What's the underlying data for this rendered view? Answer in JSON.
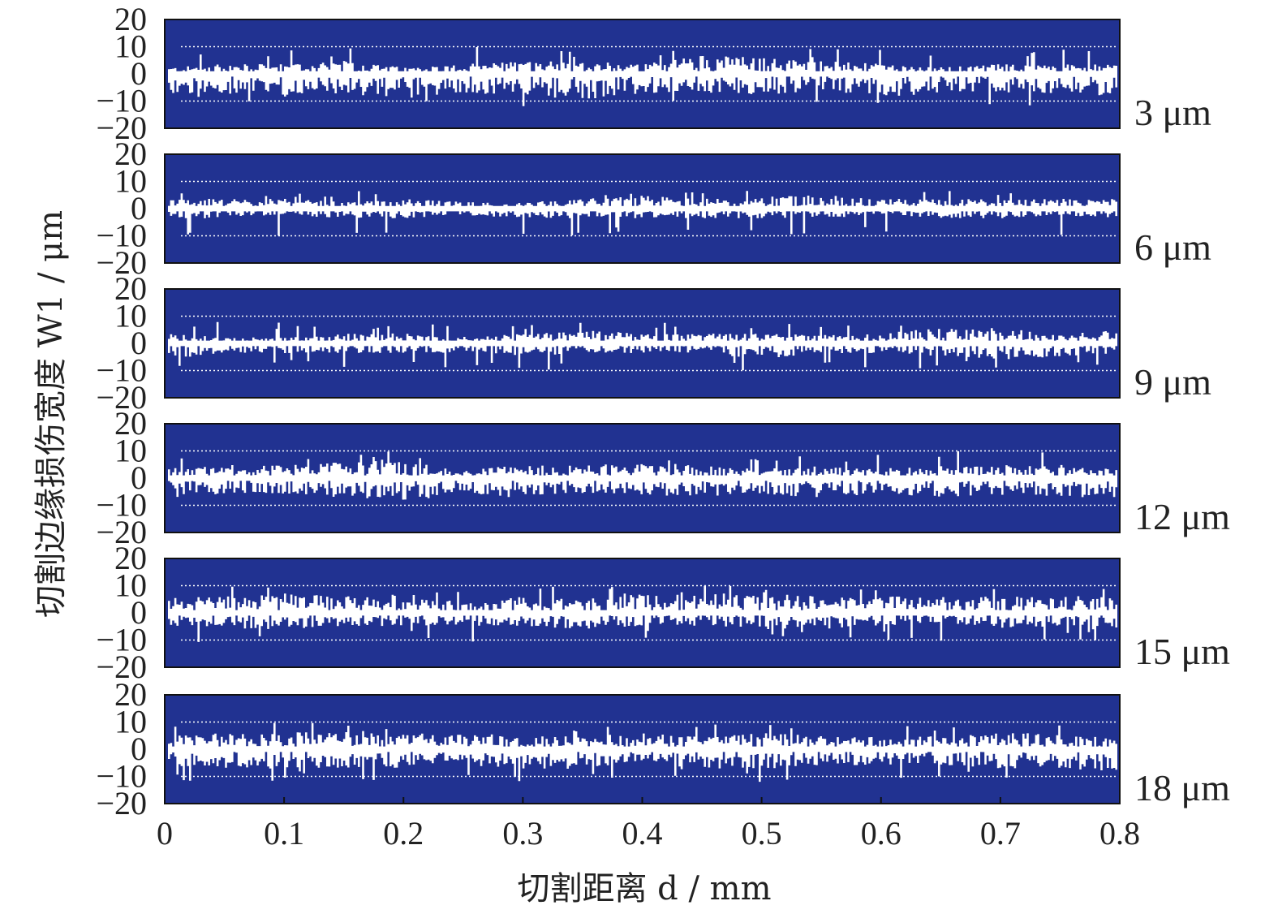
{
  "chart_data": {
    "type": "line",
    "xlabel": "切割距离 d / mm",
    "ylabel": "切割边缘损伤宽度 W1 / μm",
    "xlim": [
      0,
      0.8
    ],
    "ylim": [
      -20,
      20
    ],
    "x_ticks": [
      "0",
      "0.1",
      "0.2",
      "0.3",
      "0.4",
      "0.5",
      "0.6",
      "0.7",
      "0.8"
    ],
    "y_ticks": [
      "20",
      "10",
      "0",
      "−10",
      "−20"
    ],
    "grid_y": [
      10,
      -10
    ],
    "colors": {
      "background": "#213291",
      "trace": "#ffffff",
      "frame": "#111111"
    },
    "panels": [
      {
        "label": "3 μm",
        "x": [
          0,
          0.05,
          0.1,
          0.15,
          0.2,
          0.25,
          0.3,
          0.35,
          0.4,
          0.45,
          0.5,
          0.55,
          0.6,
          0.65,
          0.7,
          0.75,
          0.8
        ],
        "upper": [
          2,
          3,
          3,
          4,
          2,
          3,
          4,
          4,
          3,
          6,
          5,
          4,
          3,
          2,
          3,
          3,
          3
        ],
        "lower": [
          -7,
          -6,
          -7,
          -7,
          -8,
          -6,
          -7,
          -8,
          -6,
          -6,
          -7,
          -5,
          -7,
          -6,
          -6,
          -6,
          -7
        ],
        "max_peak": 10,
        "min_peak": -12
      },
      {
        "label": "6 μm",
        "x": [
          0,
          0.05,
          0.1,
          0.15,
          0.2,
          0.25,
          0.3,
          0.35,
          0.4,
          0.45,
          0.5,
          0.55,
          0.6,
          0.65,
          0.7,
          0.75,
          0.8
        ],
        "upper": [
          3,
          3,
          3,
          2,
          3,
          2,
          2,
          3,
          4,
          3,
          4,
          4,
          3,
          3,
          3,
          3,
          3
        ],
        "lower": [
          -3,
          -3,
          -2,
          -3,
          -3,
          -2,
          -3,
          -3,
          -3,
          -3,
          -3,
          -3,
          -2,
          -3,
          -3,
          -2,
          -3
        ],
        "max_peak": 7,
        "min_peak": -10
      },
      {
        "label": "9 μm",
        "x": [
          0,
          0.05,
          0.1,
          0.15,
          0.2,
          0.25,
          0.3,
          0.35,
          0.4,
          0.45,
          0.5,
          0.55,
          0.6,
          0.65,
          0.7,
          0.75,
          0.8
        ],
        "upper": [
          3,
          2,
          2,
          3,
          3,
          2,
          3,
          4,
          3,
          3,
          3,
          3,
          3,
          5,
          4,
          3,
          4
        ],
        "lower": [
          -5,
          -3,
          -3,
          -3,
          -3,
          -3,
          -4,
          -3,
          -3,
          -3,
          -5,
          -3,
          -3,
          -4,
          -5,
          -4,
          -3
        ],
        "max_peak": 8,
        "min_peak": -10
      },
      {
        "label": "12 μm",
        "x": [
          0,
          0.05,
          0.1,
          0.15,
          0.2,
          0.25,
          0.3,
          0.35,
          0.4,
          0.45,
          0.5,
          0.55,
          0.6,
          0.65,
          0.7,
          0.75,
          0.8
        ],
        "upper": [
          3,
          4,
          4,
          5,
          5,
          3,
          4,
          4,
          5,
          4,
          3,
          4,
          3,
          4,
          4,
          4,
          3
        ],
        "lower": [
          -5,
          -5,
          -5,
          -6,
          -7,
          -5,
          -5,
          -5,
          -5,
          -6,
          -5,
          -6,
          -5,
          -6,
          -5,
          -6,
          -6
        ],
        "max_peak": 10,
        "min_peak": -7
      },
      {
        "label": "15 μm",
        "x": [
          0,
          0.05,
          0.1,
          0.15,
          0.2,
          0.25,
          0.3,
          0.35,
          0.4,
          0.45,
          0.5,
          0.55,
          0.6,
          0.65,
          0.7,
          0.75,
          0.8
        ],
        "upper": [
          5,
          5,
          6,
          5,
          6,
          3,
          5,
          4,
          7,
          6,
          6,
          5,
          5,
          5,
          5,
          5,
          5
        ],
        "lower": [
          -4,
          -5,
          -5,
          -4,
          -4,
          -4,
          -4,
          -5,
          -4,
          -4,
          -5,
          -5,
          -4,
          -3,
          -5,
          -4,
          -6
        ],
        "max_peak": 10,
        "min_peak": -11
      },
      {
        "label": "18 μm",
        "x": [
          0,
          0.05,
          0.1,
          0.15,
          0.2,
          0.25,
          0.3,
          0.35,
          0.4,
          0.45,
          0.5,
          0.55,
          0.6,
          0.65,
          0.7,
          0.75,
          0.8
        ],
        "upper": [
          4,
          5,
          5,
          6,
          5,
          5,
          4,
          4,
          5,
          4,
          5,
          4,
          4,
          4,
          5,
          5,
          3
        ],
        "lower": [
          -5,
          -6,
          -6,
          -6,
          -6,
          -5,
          -6,
          -6,
          -5,
          -6,
          -6,
          -5,
          -5,
          -5,
          -6,
          -6,
          -7
        ],
        "max_peak": 10,
        "min_peak": -12
      }
    ]
  }
}
